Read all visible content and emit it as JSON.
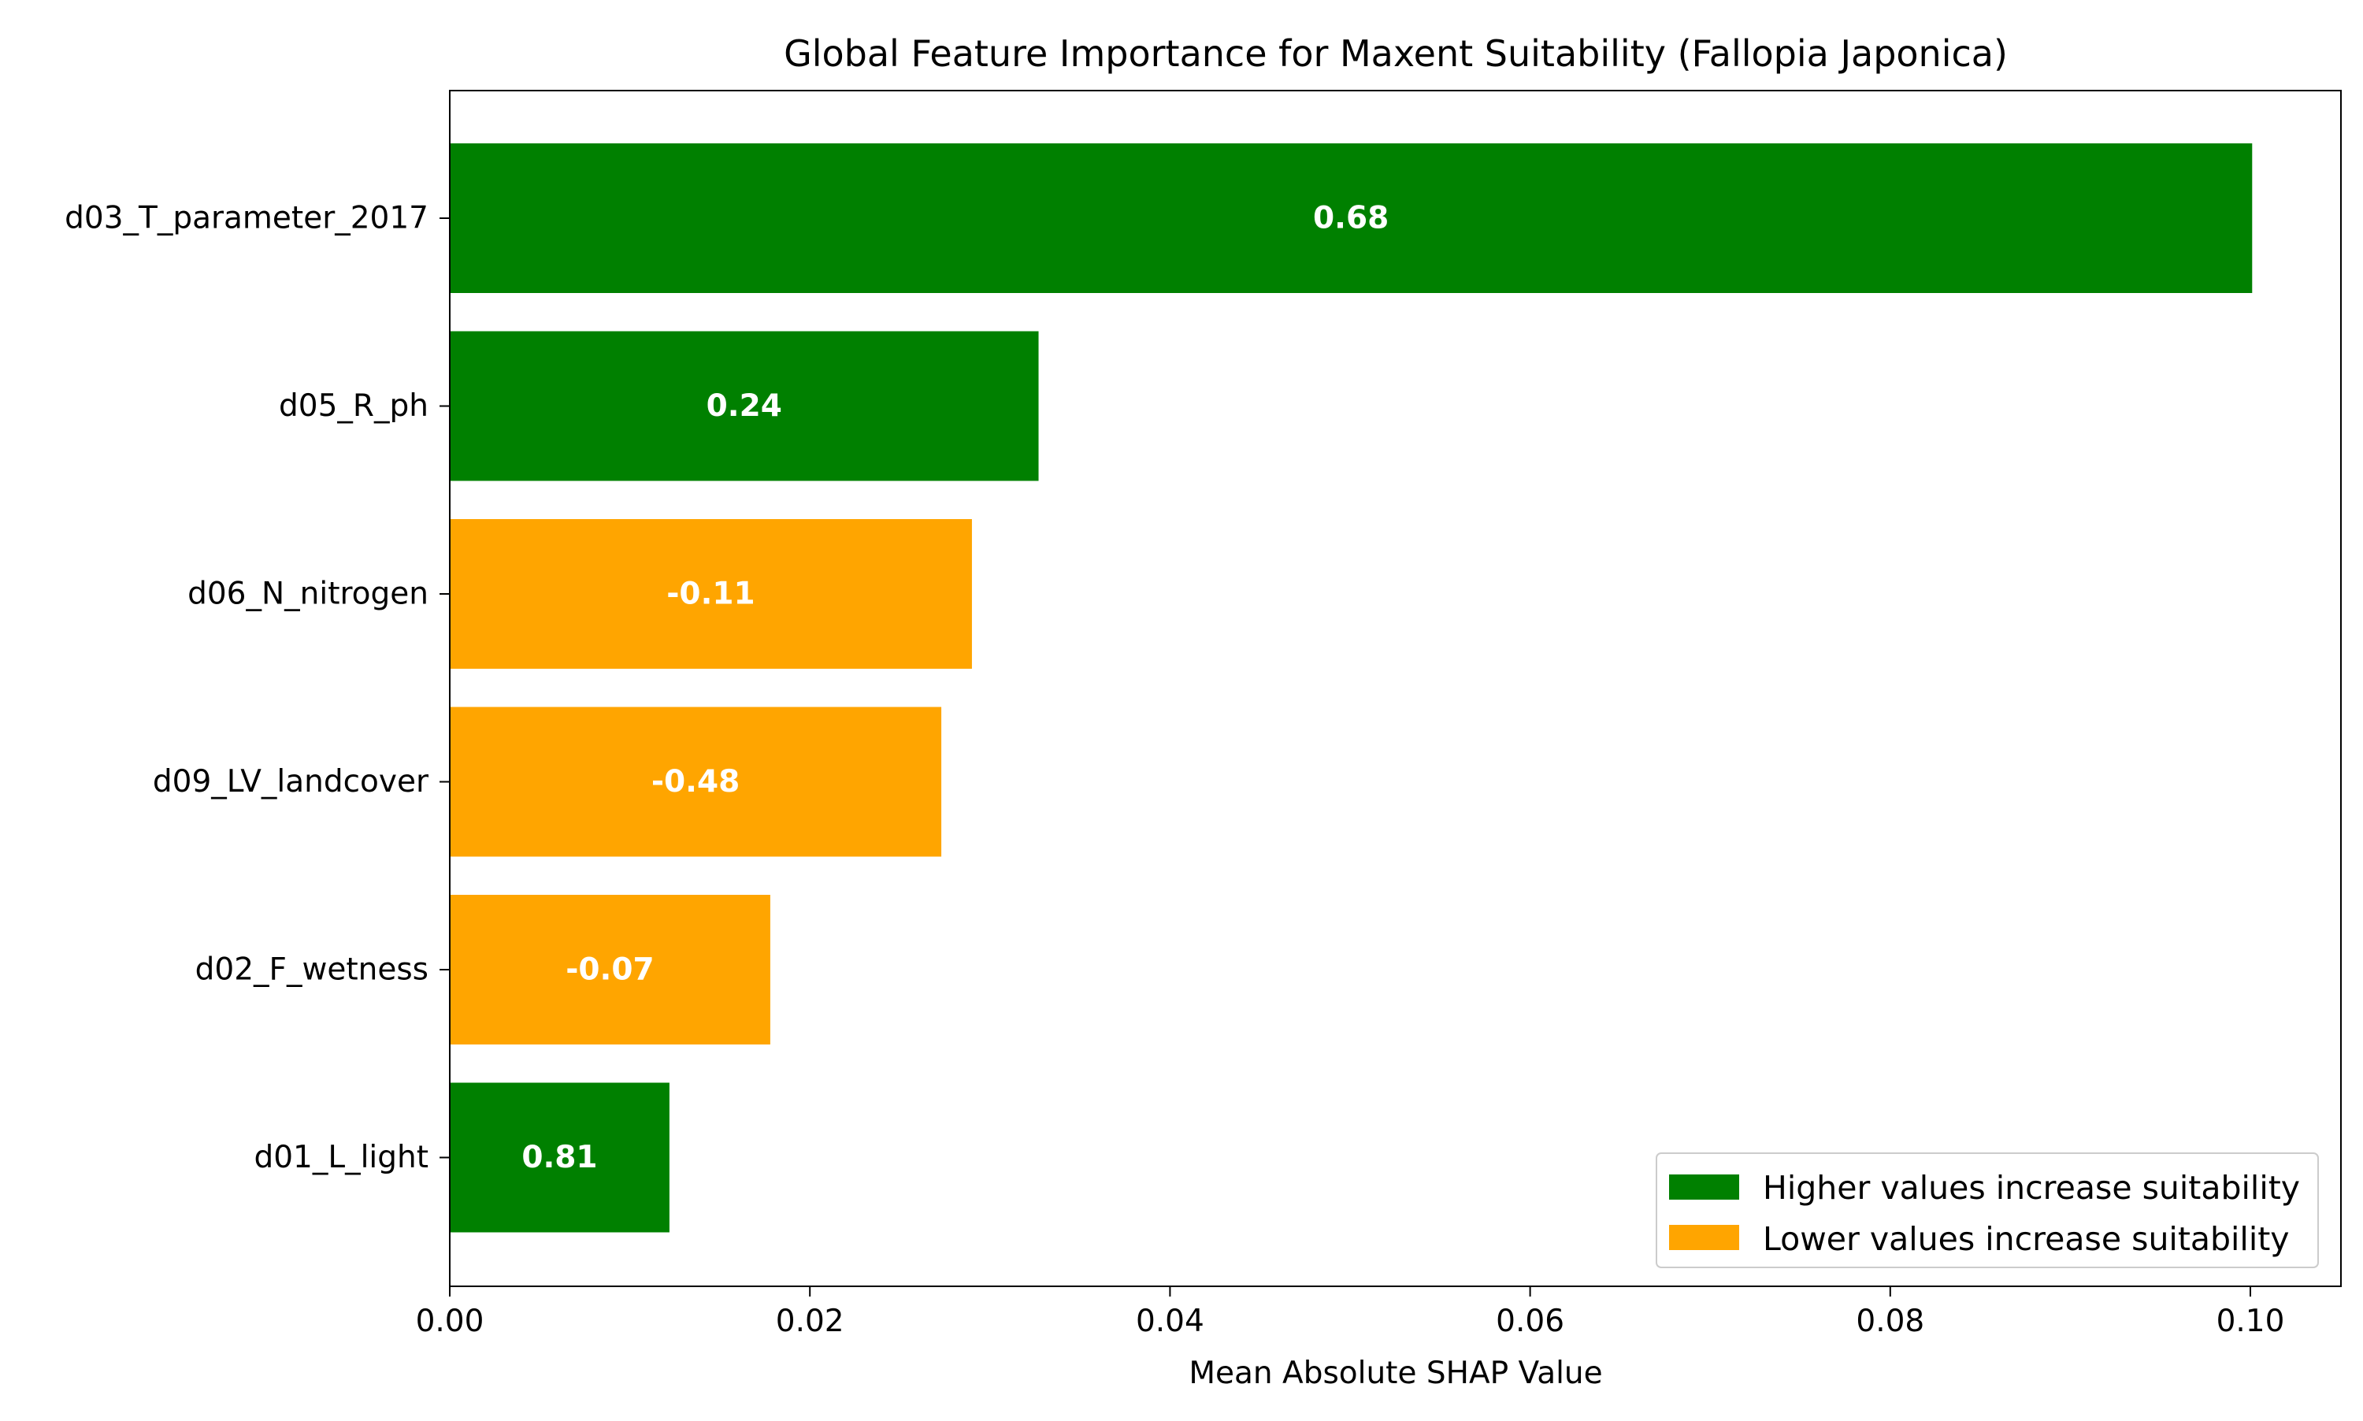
{
  "chart_data": {
    "type": "bar",
    "orientation": "horizontal",
    "title": "Global Feature Importance for Maxent Suitability (Fallopia Japonica)",
    "xlabel": "Mean Absolute SHAP Value",
    "ylabel": "",
    "xlim": [
      0.0,
      0.105
    ],
    "x_ticks": [
      0.0,
      0.02,
      0.04,
      0.06,
      0.08,
      0.1
    ],
    "x_tick_labels": [
      "0.00",
      "0.02",
      "0.04",
      "0.06",
      "0.08",
      "0.10"
    ],
    "grid": false,
    "legend_position": "lower-right",
    "bars": [
      {
        "feature": "d03_T_parameter_2017",
        "value": 0.1001,
        "label": "0.68",
        "direction": "positive"
      },
      {
        "feature": "d05_R_ph",
        "value": 0.0327,
        "label": "0.24",
        "direction": "positive"
      },
      {
        "feature": "d06_N_nitrogen",
        "value": 0.029,
        "label": "-0.11",
        "direction": "negative"
      },
      {
        "feature": "d09_LV_landcover",
        "value": 0.0273,
        "label": "-0.48",
        "direction": "negative"
      },
      {
        "feature": "d02_F_wetness",
        "value": 0.0178,
        "label": "-0.07",
        "direction": "negative"
      },
      {
        "feature": "d01_L_light",
        "value": 0.0122,
        "label": "0.81",
        "direction": "positive"
      }
    ],
    "legend": [
      {
        "key": "positive",
        "label": "Higher values increase suitability",
        "color": "#008000"
      },
      {
        "key": "negative",
        "label": "Lower values increase suitability",
        "color": "#ffa500"
      }
    ]
  }
}
